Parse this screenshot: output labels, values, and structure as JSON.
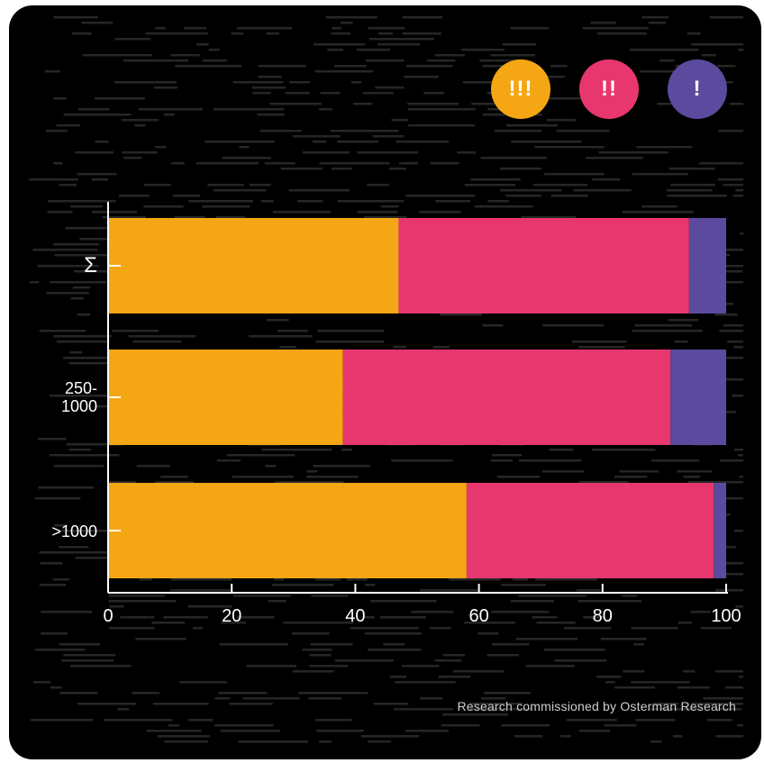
{
  "colors": {
    "critical": "#f5a614",
    "high": "#e8376e",
    "low": "#5b4a9e",
    "background": "#000000",
    "axis": "#ffffff"
  },
  "legend": [
    {
      "symbol": "!!!",
      "color": "#f5a614"
    },
    {
      "symbol": "!!",
      "color": "#e8376e"
    },
    {
      "symbol": "!",
      "color": "#5b4a9e"
    }
  ],
  "chart_data": {
    "type": "bar",
    "orientation": "horizontal",
    "stacked": true,
    "categories": [
      "Σ",
      "250-\n1000",
      ">1000"
    ],
    "series": [
      {
        "symbol": "!!!",
        "color": "#f5a614",
        "values": [
          47,
          38,
          58
        ]
      },
      {
        "symbol": "!!",
        "color": "#e8376e",
        "values": [
          47,
          53,
          40
        ]
      },
      {
        "symbol": "!",
        "color": "#5b4a9e",
        "values": [
          6,
          9,
          2
        ]
      }
    ],
    "xlim": [
      0,
      100
    ],
    "xticks": [
      0,
      20,
      40,
      60,
      80,
      100
    ],
    "legend_position": "top-right",
    "grid": false
  },
  "footer": {
    "credit": "Research commissioned by Osterman Research"
  }
}
